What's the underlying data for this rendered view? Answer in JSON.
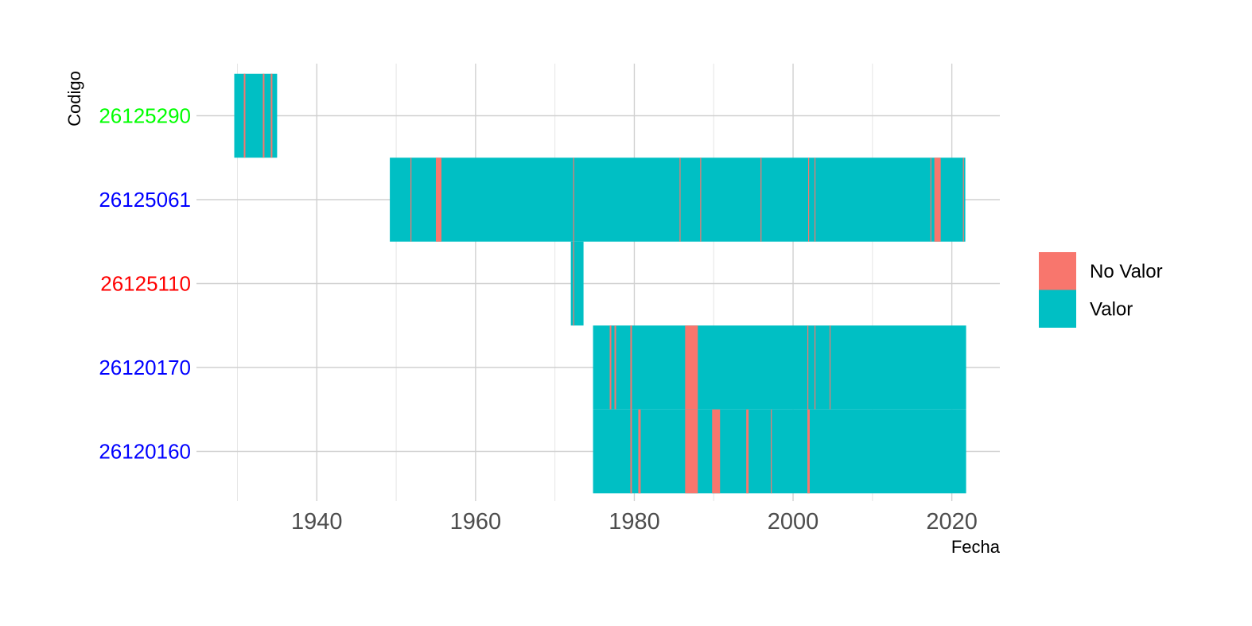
{
  "chart_data": {
    "type": "timeline",
    "xlabel": "Fecha",
    "ylabel": "Codigo",
    "xlim": [
      1930,
      2026
    ],
    "x_ticks": [
      1940,
      1960,
      1980,
      2000,
      2020
    ],
    "grid": true,
    "legend_position": "right",
    "legend": [
      {
        "label": "No Valor",
        "color": "#F8766D"
      },
      {
        "label": "Valor",
        "color": "#00BFC4"
      }
    ],
    "stations": [
      {
        "codigo": "26125290",
        "label_color": "#00FF00",
        "start": 1929.6,
        "end": 1935.0,
        "no_valor": [
          [
            1930.8,
            1931.0
          ],
          [
            1933.2,
            1933.4
          ],
          [
            1934.2,
            1934.4
          ]
        ]
      },
      {
        "codigo": "26125061",
        "label_color": "#0000FF",
        "start": 1949.2,
        "end": 2021.7,
        "no_valor": [
          [
            1951.8,
            1951.9
          ],
          [
            1955.0,
            1955.7
          ],
          [
            1972.3,
            1972.4
          ],
          [
            1985.7,
            1985.8
          ],
          [
            1988.3,
            1988.4
          ],
          [
            1995.9,
            1996.0
          ],
          [
            2001.9,
            2002.0
          ],
          [
            2002.7,
            2002.8
          ],
          [
            2017.3,
            2017.4
          ],
          [
            2017.8,
            2018.6
          ],
          [
            2021.4,
            2021.5
          ]
        ]
      },
      {
        "codigo": "26125110",
        "label_color": "#FF0000",
        "start": 1972.0,
        "end": 1973.6,
        "no_valor": [
          [
            1972.3,
            1972.4
          ]
        ]
      },
      {
        "codigo": "26120170",
        "label_color": "#0000FF",
        "start": 1974.8,
        "end": 2021.8,
        "no_valor": [
          [
            1976.9,
            1977.1
          ],
          [
            1977.5,
            1977.7
          ],
          [
            1979.5,
            1979.7
          ],
          [
            1986.4,
            1988.0
          ],
          [
            2001.8,
            2001.9
          ],
          [
            2002.7,
            2002.8
          ],
          [
            2004.6,
            2004.7
          ]
        ]
      },
      {
        "codigo": "26120160",
        "label_color": "#0000FF",
        "start": 1974.8,
        "end": 2021.8,
        "no_valor": [
          [
            1979.5,
            1979.7
          ],
          [
            1980.5,
            1980.8
          ],
          [
            1986.4,
            1988.0
          ],
          [
            1989.8,
            1990.8
          ],
          [
            1994.1,
            1994.4
          ],
          [
            1997.2,
            1997.3
          ],
          [
            2001.8,
            2002.1
          ]
        ]
      }
    ]
  }
}
